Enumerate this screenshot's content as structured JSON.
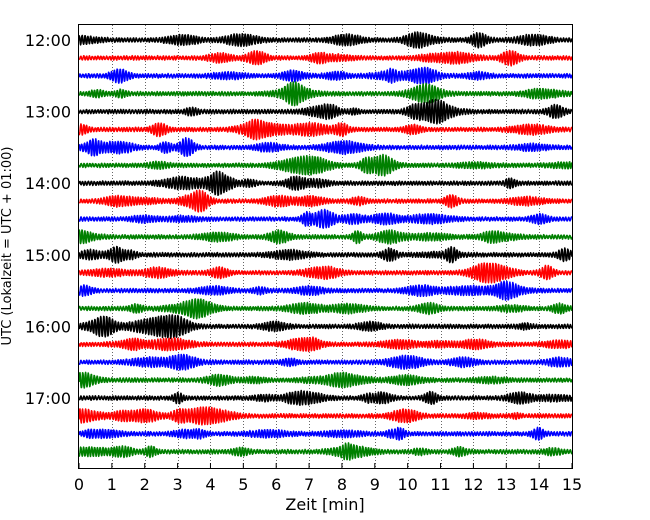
{
  "chart_data": {
    "type": "line",
    "title": "",
    "xlabel": "Zeit  [min]",
    "ylabel": "UTC (Lokalzeit = UTC + 01:00)",
    "xlim": [
      0,
      15
    ],
    "x_ticks": [
      0,
      1,
      2,
      3,
      4,
      5,
      6,
      7,
      8,
      9,
      10,
      11,
      12,
      13,
      14,
      15
    ],
    "x_tick_labels": [
      "0",
      "1",
      "2",
      "3",
      "4",
      "5",
      "6",
      "7",
      "8",
      "9",
      "10",
      "11",
      "12",
      "13",
      "14",
      "15"
    ],
    "y_tick_labels": [
      "12:00",
      "13:00",
      "14:00",
      "15:00",
      "16:00",
      "17:00"
    ],
    "minutes_per_line": 15,
    "line_colors_cycle": [
      "#000000",
      "#ff0000",
      "#0000ff",
      "#008000"
    ],
    "grid": "vertical dotted at each minute",
    "legend": "none",
    "series": [
      {
        "start": "12:00",
        "color": "#000000"
      },
      {
        "start": "12:15",
        "color": "#ff0000"
      },
      {
        "start": "12:30",
        "color": "#0000ff"
      },
      {
        "start": "12:45",
        "color": "#008000"
      },
      {
        "start": "13:00",
        "color": "#000000"
      },
      {
        "start": "13:15",
        "color": "#ff0000"
      },
      {
        "start": "13:30",
        "color": "#0000ff"
      },
      {
        "start": "13:45",
        "color": "#008000"
      },
      {
        "start": "14:00",
        "color": "#000000"
      },
      {
        "start": "14:15",
        "color": "#ff0000"
      },
      {
        "start": "14:30",
        "color": "#0000ff"
      },
      {
        "start": "14:45",
        "color": "#008000"
      },
      {
        "start": "15:00",
        "color": "#000000"
      },
      {
        "start": "15:15",
        "color": "#ff0000"
      },
      {
        "start": "15:30",
        "color": "#0000ff"
      },
      {
        "start": "15:45",
        "color": "#008000"
      },
      {
        "start": "16:00",
        "color": "#000000"
      },
      {
        "start": "16:15",
        "color": "#ff0000"
      },
      {
        "start": "16:30",
        "color": "#0000ff"
      },
      {
        "start": "16:45",
        "color": "#008000"
      },
      {
        "start": "17:00",
        "color": "#000000"
      },
      {
        "start": "17:15",
        "color": "#ff0000"
      },
      {
        "start": "17:30",
        "color": "#0000ff"
      },
      {
        "start": "17:45",
        "color": "#008000"
      }
    ]
  }
}
